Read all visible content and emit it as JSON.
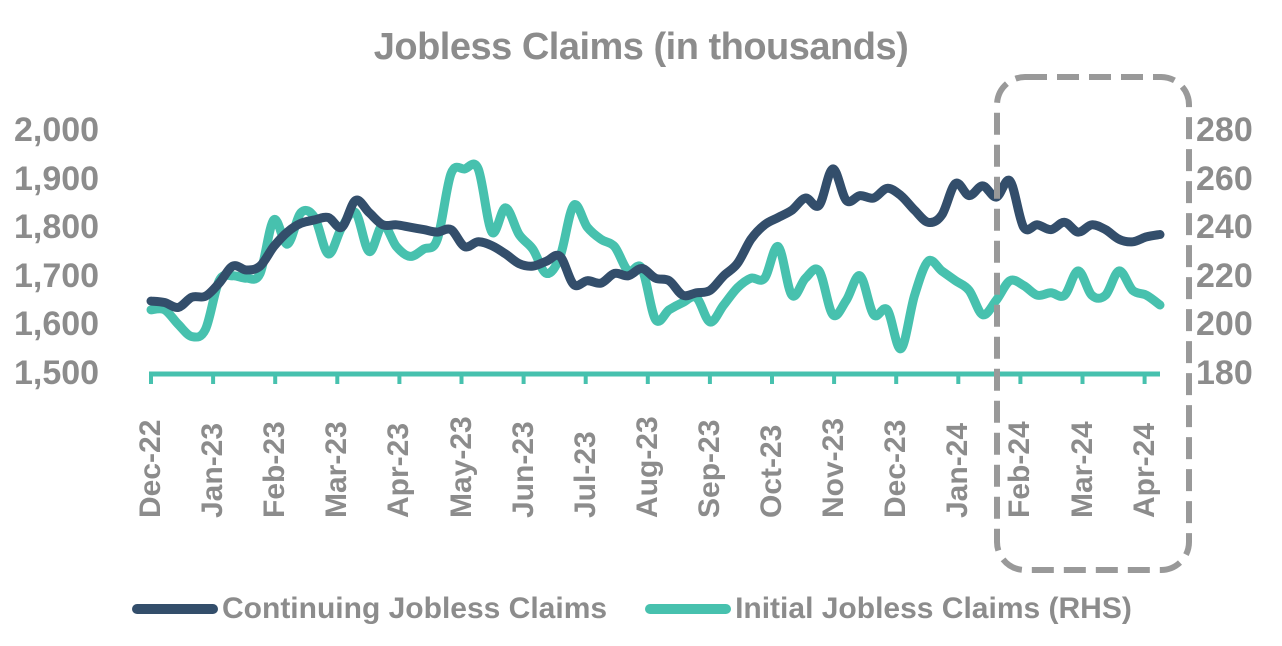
{
  "title": "Jobless Claims (in thousands)",
  "colors": {
    "continuing": "#334e6b",
    "initial": "#47c1ae",
    "axis": "#47c1ae",
    "text": "#8c8c8c",
    "highlight_box": "#999999"
  },
  "axes": {
    "left": {
      "ticks": [
        "2,000",
        "1,900",
        "1,800",
        "1,700",
        "1,600",
        "1,500"
      ]
    },
    "right": {
      "ticks": [
        "280",
        "260",
        "240",
        "220",
        "200",
        "180"
      ]
    },
    "x": {
      "ticks": [
        "Dec-22",
        "Jan-23",
        "Feb-23",
        "Mar-23",
        "Apr-23",
        "May-23",
        "Jun-23",
        "Jul-23",
        "Aug-23",
        "Sep-23",
        "Oct-23",
        "Nov-23",
        "Dec-23",
        "Jan-24",
        "Feb-24",
        "Mar-24",
        "Apr-24"
      ]
    }
  },
  "legend": {
    "items": [
      {
        "label": "Continuing Jobless Claims"
      },
      {
        "label": "Initial Jobless Claims (RHS)"
      }
    ]
  },
  "annotation": {
    "label": "Highlighted region: Feb-24 to Apr-24 (dashed rounded box)"
  },
  "chart_data": {
    "type": "line",
    "title": "Jobless Claims (in thousands)",
    "xlabel": "",
    "ylabel": "",
    "ylabel_right": "",
    "x_tick_labels": [
      "Dec-22",
      "Jan-23",
      "Feb-23",
      "Mar-23",
      "Apr-23",
      "May-23",
      "Jun-23",
      "Jul-23",
      "Aug-23",
      "Sep-23",
      "Oct-23",
      "Nov-23",
      "Dec-23",
      "Jan-24",
      "Feb-24",
      "Mar-24",
      "Apr-24"
    ],
    "frequency": "weekly",
    "ylim": [
      1500,
      2000
    ],
    "ylim_right": [
      180,
      280
    ],
    "grid": false,
    "legend_position": "bottom",
    "series": [
      {
        "name": "Continuing Jobless Claims",
        "axis": "left",
        "color": "#334e6b",
        "values": [
          1648,
          1645,
          1635,
          1656,
          1658,
          1685,
          1720,
          1712,
          1720,
          1760,
          1790,
          1808,
          1815,
          1820,
          1800,
          1855,
          1830,
          1805,
          1805,
          1800,
          1795,
          1790,
          1795,
          1760,
          1770,
          1762,
          1745,
          1725,
          1720,
          1730,
          1740,
          1682,
          1690,
          1685,
          1705,
          1700,
          1715,
          1695,
          1690,
          1660,
          1665,
          1670,
          1700,
          1725,
          1775,
          1805,
          1820,
          1835,
          1860,
          1845,
          1920,
          1855,
          1865,
          1860,
          1880,
          1865,
          1835,
          1810,
          1825,
          1890,
          1865,
          1885,
          1862,
          1895,
          1800,
          1805,
          1795,
          1810,
          1790,
          1805,
          1795,
          1775,
          1770,
          1780,
          1785
        ]
      },
      {
        "name": "Initial Jobless Claims (RHS)",
        "axis": "right",
        "color": "#47c1ae",
        "values": [
          206,
          206,
          200,
          195,
          198,
          218,
          220,
          219,
          221,
          243,
          233,
          246,
          244,
          229,
          240,
          246,
          230,
          241,
          232,
          228,
          231,
          235,
          262,
          264,
          264,
          238,
          248,
          237,
          231,
          221,
          228,
          249,
          240,
          235,
          232,
          222,
          223,
          202,
          206,
          209,
          211,
          201,
          208,
          215,
          219,
          219,
          232,
          212,
          219,
          222,
          204,
          210,
          220,
          204,
          206,
          190,
          212,
          226,
          222,
          218,
          214,
          204,
          210,
          218,
          216,
          212,
          213,
          212,
          222,
          212,
          212,
          222,
          214,
          212,
          208
        ]
      }
    ],
    "annotations": [
      {
        "type": "dashed-rounded-rect",
        "x_range": [
          "Feb-24",
          "Apr-24"
        ],
        "note": "emphasizes most recent period"
      }
    ]
  }
}
